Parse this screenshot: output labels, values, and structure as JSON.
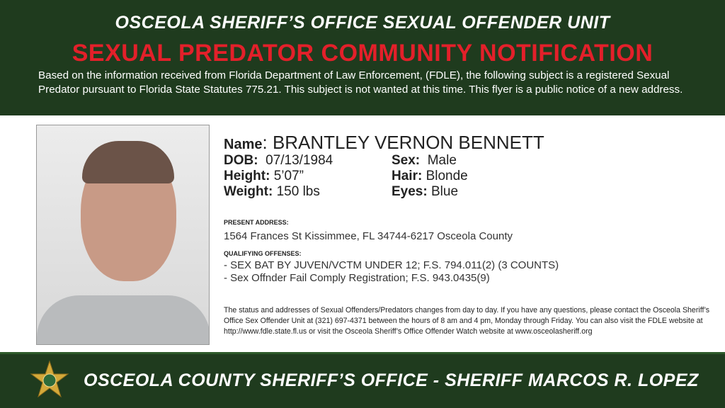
{
  "header": {
    "title": "OSCEOLA SHERIFF’S OFFICE SEXUAL OFFENDER UNIT",
    "subtitle": "SEXUAL PREDATOR COMMUNITY NOTIFICATION",
    "intro": "Based on the information received from Florida Department of Law Enforcement, (FDLE), the following subject is a registered Sexual Predator pursuant to Florida State Statutes 775.21. This subject is not wanted at this time. This flyer is a public notice of a new address."
  },
  "subject": {
    "name_label": "Name",
    "name": "BRANTLEY VERNON BENNETT",
    "dob_label": "DOB:",
    "dob": "07/13/1984",
    "height_label": "Height:",
    "height": "5’07”",
    "weight_label": "Weight:",
    "weight": "150 lbs",
    "sex_label": "Sex:",
    "sex": "Male",
    "hair_label": "Hair:",
    "hair": "Blonde",
    "eyes_label": "Eyes:",
    "eyes": "Blue"
  },
  "address": {
    "label": "PRESENT ADDRESS:",
    "value": "1564 Frances St Kissimmee, FL 34744-6217 Osceola County"
  },
  "offenses": {
    "label": "QUALIFYING OFFENSES:",
    "items": [
      "- SEX BAT BY JUVEN/VCTM UNDER 12; F.S. 794.011(2) (3 COUNTS)",
      "- Sex Offnder Fail Comply Registration; F.S. 943.0435(9)"
    ]
  },
  "notice": "The status and addresses of Sexual Offenders/Predators changes from day to day. If you have any questions, please contact the Osceola Sheriff’s Office Sex Offender Unit at (321) 697-4371 between the hours of 8 am and 4 pm, Monday through Friday. You can also visit the FDLE website at http://www.fdle.state.fl.us or visit the Osceola Sheriff’s Office Offender Watch website at www.osceolasheriff.org",
  "footer": {
    "text": "OSCEOLA COUNTY SHERIFF’S OFFICE - SHERIFF MARCOS R. LOPEZ",
    "badge_icon": "sheriff-star-badge-icon"
  },
  "colors": {
    "green": "#1f3b1e",
    "red": "#e3202a",
    "gold": "#d4a93a"
  }
}
